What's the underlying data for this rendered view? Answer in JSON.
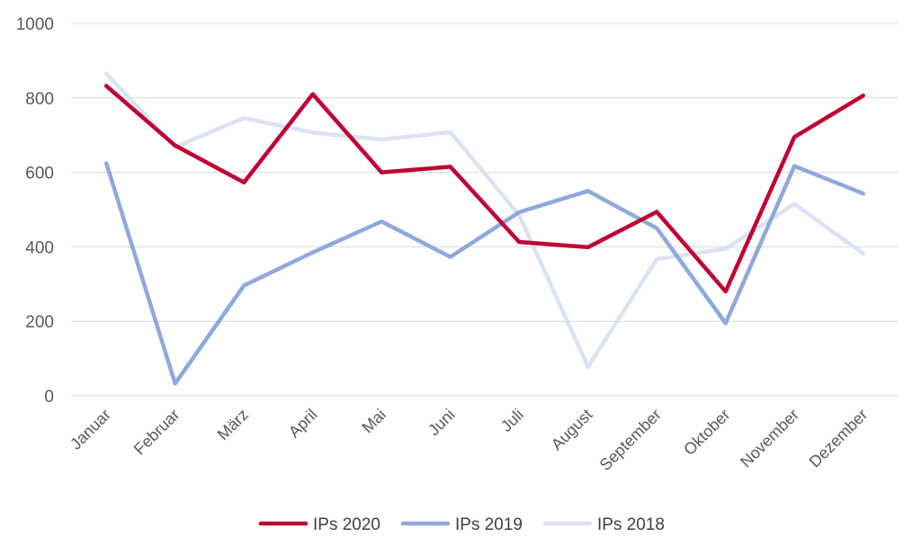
{
  "chart_data": {
    "type": "line",
    "categories": [
      "Januar",
      "Februar",
      "März",
      "April",
      "Mai",
      "Juni",
      "Juli",
      "August",
      "September",
      "Oktober",
      "November",
      "Dezember"
    ],
    "ylim": [
      0,
      1000
    ],
    "yticks": [
      0,
      200,
      400,
      600,
      800,
      1000
    ],
    "grid": true,
    "legend": "bottom",
    "series": [
      {
        "name": "IPs 2020",
        "color": "#c00033",
        "values": [
          832,
          672,
          573,
          810,
          600,
          615,
          413,
          399,
          494,
          280,
          695,
          806
        ]
      },
      {
        "name": "IPs 2019",
        "color": "#8ea9db",
        "values": [
          624,
          33,
          296,
          385,
          468,
          373,
          493,
          550,
          450,
          195,
          617,
          543
        ]
      },
      {
        "name": "IPs 2018",
        "color": "#dae3f3",
        "values": [
          865,
          668,
          746,
          707,
          688,
          708,
          485,
          78,
          367,
          395,
          515,
          382
        ]
      }
    ]
  }
}
